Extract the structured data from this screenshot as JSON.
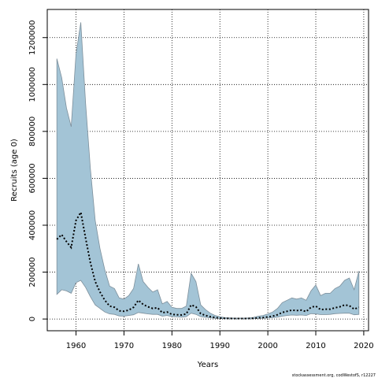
{
  "chart_data": {
    "type": "area",
    "xlabel": "Years",
    "ylabel": "Recruits (age 0)",
    "xlim": [
      1954,
      2021
    ],
    "ylim": [
      -50000,
      1320000
    ],
    "x_ticks": [
      1960,
      1970,
      1980,
      1990,
      2000,
      2010,
      2020
    ],
    "y_ticks": [
      0,
      200000,
      400000,
      600000,
      800000,
      1000000,
      1200000
    ],
    "grid": true,
    "colors": {
      "band": "#a3c4d6",
      "band_edge": "#7d8f9b",
      "line": "#000000"
    },
    "series": [
      {
        "style": "confidence-band",
        "x": [
          1956,
          1957,
          1958,
          1959,
          1960,
          1961,
          1962,
          1963,
          1964,
          1965,
          1966,
          1967,
          1968,
          1969,
          1970,
          1971,
          1972,
          1973,
          1974,
          1975,
          1976,
          1977,
          1978,
          1979,
          1980,
          1981,
          1982,
          1983,
          1984,
          1985,
          1986,
          1987,
          1988,
          1989,
          1990,
          1991,
          1992,
          1993,
          1994,
          1995,
          1996,
          1997,
          1998,
          1999,
          2000,
          2001,
          2002,
          2003,
          2004,
          2005,
          2006,
          2007,
          2008,
          2009,
          2010,
          2011,
          2012,
          2013,
          2014,
          2015,
          2016,
          2017,
          2018,
          2019
        ],
        "upper": [
          1110000,
          1030000,
          900000,
          820000,
          1130000,
          1265000,
          920000,
          640000,
          420000,
          300000,
          210000,
          140000,
          130000,
          90000,
          85000,
          100000,
          130000,
          235000,
          160000,
          135000,
          115000,
          125000,
          65000,
          75000,
          50000,
          45000,
          45000,
          55000,
          195000,
          160000,
          60000,
          40000,
          25000,
          15000,
          10000,
          6000,
          5000,
          4000,
          4000,
          4000,
          5000,
          7000,
          12000,
          15000,
          22000,
          30000,
          45000,
          70000,
          80000,
          90000,
          85000,
          90000,
          80000,
          120000,
          145000,
          100000,
          110000,
          110000,
          130000,
          140000,
          165000,
          175000,
          125000,
          205000
        ],
        "lower": [
          105000,
          125000,
          120000,
          110000,
          155000,
          165000,
          135000,
          95000,
          60000,
          45000,
          30000,
          22000,
          20000,
          13000,
          12000,
          15000,
          18000,
          28000,
          25000,
          22000,
          20000,
          20000,
          12000,
          15000,
          10000,
          9000,
          8000,
          10000,
          25000,
          20000,
          10000,
          7000,
          5000,
          3000,
          2000,
          1500,
          1200,
          1000,
          1000,
          1000,
          1200,
          1500,
          2500,
          3000,
          4000,
          6000,
          8000,
          12000,
          15000,
          17000,
          16000,
          17000,
          15000,
          23000,
          22000,
          19000,
          19000,
          20000,
          23000,
          24000,
          25000,
          25000,
          18000,
          20000
        ]
      },
      {
        "style": "dotted-line",
        "x": [
          1956,
          1957,
          1958,
          1959,
          1960,
          1961,
          1962,
          1963,
          1964,
          1965,
          1966,
          1967,
          1968,
          1969,
          1970,
          1971,
          1972,
          1973,
          1974,
          1975,
          1976,
          1977,
          1978,
          1979,
          1980,
          1981,
          1982,
          1983,
          1984,
          1985,
          1986,
          1987,
          1988,
          1989,
          1990,
          1991,
          1992,
          1993,
          1994,
          1995,
          1996,
          1997,
          1998,
          1999,
          2000,
          2001,
          2002,
          2003,
          2004,
          2005,
          2006,
          2007,
          2008,
          2009,
          2010,
          2011,
          2012,
          2013,
          2014,
          2015,
          2016,
          2017,
          2018,
          2019
        ],
        "values": [
          340000,
          360000,
          330000,
          305000,
          420000,
          455000,
          345000,
          240000,
          160000,
          115000,
          80000,
          55000,
          50000,
          35000,
          33000,
          38000,
          50000,
          80000,
          62000,
          52000,
          45000,
          48000,
          27000,
          30000,
          20000,
          18000,
          17000,
          22000,
          60000,
          52000,
          23000,
          15000,
          10000,
          6000,
          4000,
          3000,
          2500,
          2000,
          2000,
          2000,
          2400,
          3000,
          5000,
          6000,
          9000,
          12000,
          18000,
          28000,
          33000,
          38000,
          36000,
          38000,
          32000,
          50000,
          55000,
          40000,
          42000,
          42000,
          48000,
          52000,
          60000,
          57000,
          42000,
          50000
        ]
      }
    ],
    "source_note": "stockassessment.org, codWestofS, r12227"
  }
}
